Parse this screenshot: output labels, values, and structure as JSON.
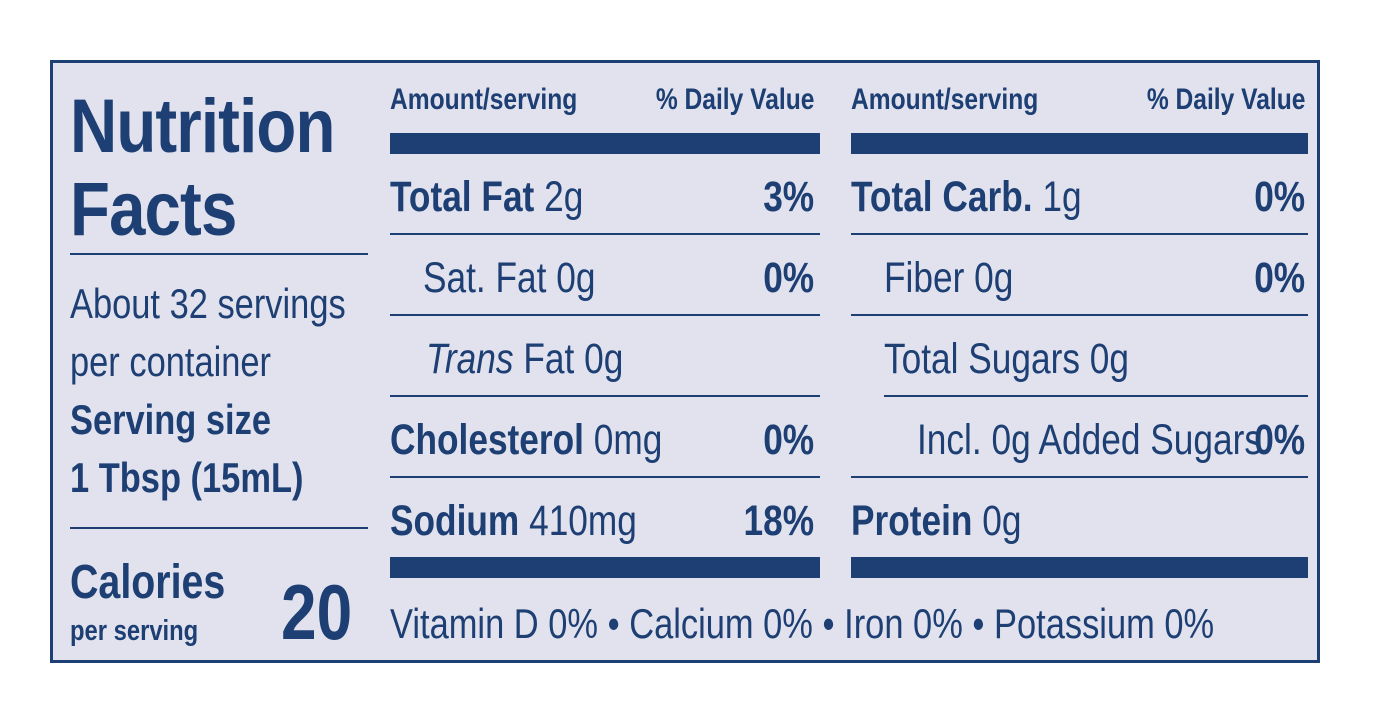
{
  "label": {
    "title_line1": "Nutrition",
    "title_line2": "Facts",
    "servings_line1": "About 32 servings",
    "servings_line2": "per container",
    "serving_size_label": "Serving size",
    "serving_size_value": "1 Tbsp (15mL)",
    "calories_label": "Calories",
    "calories_sub": "per serving",
    "calories_value": "20"
  },
  "columns": [
    {
      "header_amount": "Amount/serving",
      "header_dv": "% Daily Value",
      "rows": [
        {
          "name": "Total Fat",
          "amount": "2g",
          "dv": "3%"
        },
        {
          "name": "Sat. Fat",
          "amount": "0g",
          "dv": "0%"
        },
        {
          "name_italic": "Trans",
          "name": "Fat",
          "amount": "0g",
          "dv": ""
        },
        {
          "name": "Cholesterol",
          "amount": "0mg",
          "dv": "0%"
        },
        {
          "name": "Sodium",
          "amount": "410mg",
          "dv": "18%"
        }
      ]
    },
    {
      "header_amount": "Amount/serving",
      "header_dv": "% Daily Value",
      "rows": [
        {
          "name": "Total Carb.",
          "amount": "1g",
          "dv": "0%"
        },
        {
          "name": "Fiber",
          "amount": "0g",
          "dv": "0%"
        },
        {
          "name": "Total Sugars",
          "amount": "0g",
          "dv": ""
        },
        {
          "name": "Incl. 0g Added Sugars",
          "amount": "",
          "dv": "0%"
        },
        {
          "name": "Protein",
          "amount": "0g",
          "dv": ""
        }
      ]
    }
  ],
  "vitamins": "Vitamin D 0% • Calcium 0% • Iron 0% • Potassium 0%",
  "colors": {
    "ink": "#1d3f73",
    "background": "#e1e2ee"
  }
}
